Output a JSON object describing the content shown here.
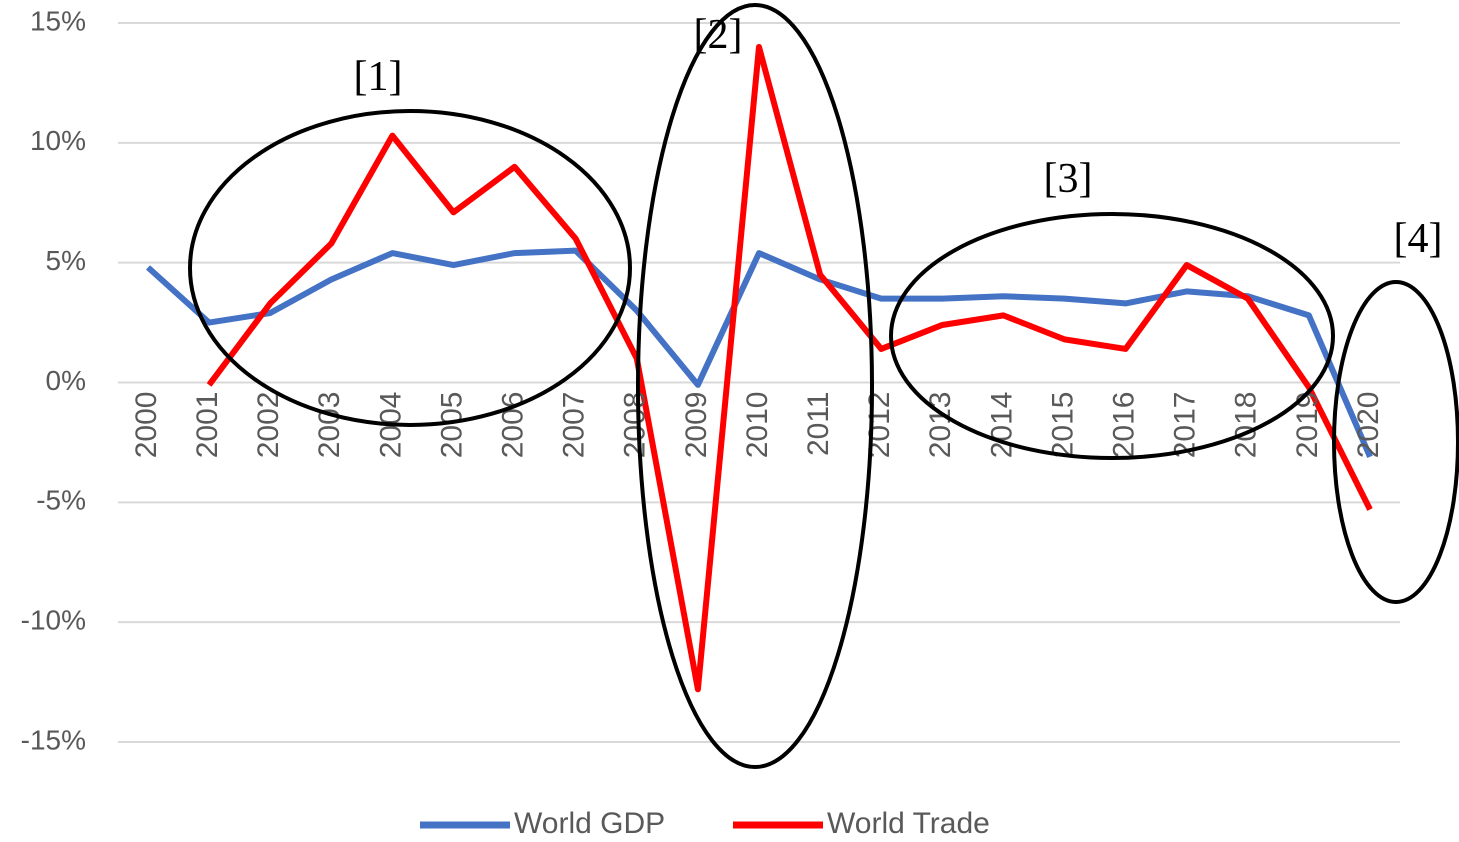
{
  "chart_data": {
    "type": "line",
    "categories": [
      "2000",
      "2001",
      "2002",
      "2003",
      "2004",
      "2005",
      "2006",
      "2007",
      "2008",
      "2009",
      "2010",
      "2011",
      "2012",
      "2013",
      "2014",
      "2015",
      "2016",
      "2017",
      "2018",
      "2019",
      "2020"
    ],
    "series": [
      {
        "name": "World GDP",
        "color": "#4472c4",
        "values": [
          4.8,
          2.5,
          2.9,
          4.3,
          5.4,
          4.9,
          5.4,
          5.5,
          3.0,
          -0.1,
          5.4,
          4.3,
          3.5,
          3.5,
          3.6,
          3.5,
          3.3,
          3.8,
          3.6,
          2.8,
          -3.1
        ]
      },
      {
        "name": "World Trade",
        "color": "#ff0000",
        "values": [
          null,
          -0.1,
          3.3,
          5.8,
          10.3,
          7.1,
          9.0,
          6.0,
          1.0,
          -12.8,
          14.0,
          4.5,
          1.4,
          2.4,
          2.8,
          1.8,
          1.4,
          4.9,
          3.5,
          -0.2,
          -5.3
        ]
      }
    ],
    "ylim": [
      -15,
      15
    ],
    "yticks": [
      {
        "value": 15,
        "label": "15%"
      },
      {
        "value": 10,
        "label": "10%"
      },
      {
        "value": 5,
        "label": "5%"
      },
      {
        "value": 0,
        "label": "0%"
      },
      {
        "value": -5,
        "label": "-5%"
      },
      {
        "value": -10,
        "label": "-10%"
      },
      {
        "value": -15,
        "label": "-15%"
      }
    ],
    "grid": true,
    "legend": "bottom",
    "annotations": [
      "[1]",
      "[2]",
      "[3]",
      "[4]"
    ]
  }
}
